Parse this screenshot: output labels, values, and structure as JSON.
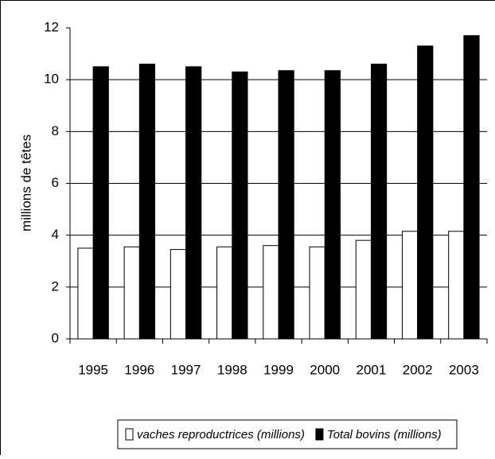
{
  "chart_data": {
    "type": "bar",
    "ylabel": "millions de têtes",
    "categories": [
      "1995",
      "1996",
      "1997",
      "1998",
      "1999",
      "2000",
      "2001",
      "2002",
      "2003"
    ],
    "series": [
      {
        "name": "vaches reproductrices (millions)",
        "color": "#ffffff",
        "values": [
          3.5,
          3.55,
          3.45,
          3.55,
          3.6,
          3.55,
          3.8,
          4.15,
          4.15
        ]
      },
      {
        "name": "Total bovins (millions)",
        "color": "#000000",
        "values": [
          10.5,
          10.6,
          10.5,
          10.3,
          10.35,
          10.35,
          10.6,
          11.3,
          11.7
        ]
      }
    ],
    "ylim": [
      0,
      12
    ],
    "yticks": [
      0,
      2,
      4,
      6,
      8,
      10,
      12
    ],
    "grid": true,
    "legend": "bottom"
  }
}
